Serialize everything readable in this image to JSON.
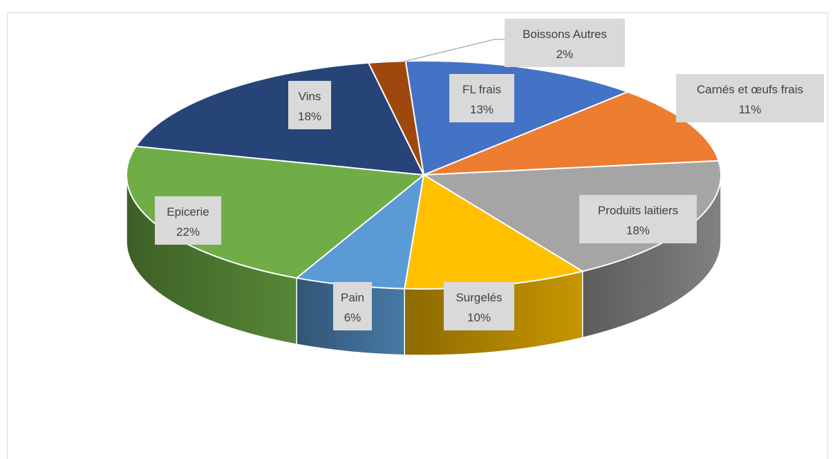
{
  "chart_data": {
    "type": "pie",
    "style": "3d",
    "title": "",
    "legend": "none",
    "slices": [
      {
        "label": "FL frais",
        "percent_label": "13%",
        "value": 13,
        "color": "#4472c4"
      },
      {
        "label": "Carnés et œufs frais",
        "percent_label": "11%",
        "value": 11,
        "color": "#ed7d31"
      },
      {
        "label": "Produits laitiers",
        "percent_label": "18%",
        "value": 18,
        "color": "#a5a5a5"
      },
      {
        "label": "Surgelés",
        "percent_label": "10%",
        "value": 10,
        "color": "#ffc000"
      },
      {
        "label": "Pain",
        "percent_label": "6%",
        "value": 6,
        "color": "#5b9bd5"
      },
      {
        "label": "Epicerie",
        "percent_label": "22%",
        "value": 22,
        "color": "#70ad47"
      },
      {
        "label": "Vins",
        "percent_label": "18%",
        "value": 18,
        "color": "#264478"
      },
      {
        "label": "Boissons Autres",
        "percent_label": "2%",
        "value": 2,
        "color": "#9e480e"
      }
    ]
  }
}
